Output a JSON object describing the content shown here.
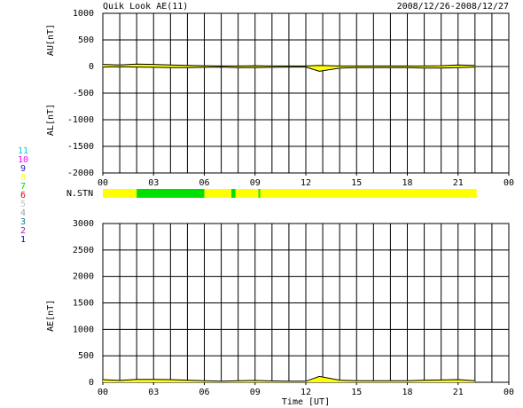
{
  "title": "Quik Look AE(11)",
  "date_range": "2008/12/26-2008/12/27",
  "chart_data": [
    {
      "type": "line",
      "xlim": [
        0,
        24
      ],
      "xgrid_step": 1,
      "xticks": [
        {
          "value": 0,
          "label": "00"
        },
        {
          "value": 3,
          "label": "03"
        },
        {
          "value": 6,
          "label": "06"
        },
        {
          "value": 9,
          "label": "09"
        },
        12,
        15,
        18,
        21,
        {
          "value": 24,
          "label": "00"
        }
      ],
      "ylim": [
        -2000,
        1000
      ],
      "yticks": [
        1000,
        500,
        0,
        -500,
        -1000,
        -1500,
        -2000
      ],
      "grid": true,
      "x": [
        0,
        1,
        2,
        3,
        4,
        5,
        6,
        7,
        8,
        9,
        10,
        11,
        12,
        12.8,
        14,
        15,
        16,
        17,
        18,
        19,
        20,
        21,
        22
      ],
      "series": [
        {
          "name": "AU[nT]",
          "color": "#000000",
          "fill": "#ffff00",
          "values": [
            40,
            30,
            45,
            40,
            30,
            20,
            15,
            10,
            10,
            15,
            10,
            10,
            10,
            20,
            10,
            10,
            10,
            10,
            10,
            10,
            15,
            30,
            20
          ]
        },
        {
          "name": "AL[nT]",
          "color": "#000000",
          "fill": "#ffff00",
          "values": [
            -10,
            -5,
            -10,
            -15,
            -20,
            -20,
            -15,
            -10,
            -20,
            -20,
            -15,
            -10,
            -10,
            -90,
            -30,
            -20,
            -20,
            -20,
            -20,
            -30,
            -30,
            -20,
            -10
          ]
        }
      ]
    },
    {
      "type": "stations",
      "label": "N.STN",
      "levels": [
        {
          "value": 11,
          "color": "#00d0d0"
        },
        {
          "value": 10,
          "color": "#ff00ff"
        },
        {
          "value": 9,
          "color": "#2020c0"
        },
        {
          "value": 8,
          "color": "#ffff00"
        },
        {
          "value": 7,
          "color": "#00e000"
        },
        {
          "value": 6,
          "color": "#e00000"
        },
        {
          "value": 5,
          "color": "#c0c0c0"
        },
        {
          "value": 4,
          "color": "#a0a0a0"
        },
        {
          "value": 3,
          "color": "#008080"
        },
        {
          "value": 2,
          "color": "#a020a0"
        },
        {
          "value": 1,
          "color": "#0000ff"
        }
      ],
      "segments": [
        {
          "start": 0,
          "end": 2,
          "stations": 8
        },
        {
          "start": 2,
          "end": 6,
          "stations": 7
        },
        {
          "start": 6,
          "end": 7.6,
          "stations": 8
        },
        {
          "start": 7.6,
          "end": 7.85,
          "stations": 7
        },
        {
          "start": 7.85,
          "end": 9.2,
          "stations": 8
        },
        {
          "start": 9.2,
          "end": 9.3,
          "stations": 7
        },
        {
          "start": 9.3,
          "end": 22.1,
          "stations": 8
        }
      ]
    },
    {
      "type": "line",
      "xlabel": "Time [UT]",
      "xlim": [
        0,
        24
      ],
      "xgrid_step": 1,
      "xticks": [
        {
          "value": 0,
          "label": "00"
        },
        {
          "value": 3,
          "label": "03"
        },
        {
          "value": 6,
          "label": "06"
        },
        {
          "value": 9,
          "label": "09"
        },
        12,
        15,
        18,
        21,
        {
          "value": 24,
          "label": "00"
        }
      ],
      "ylim": [
        0,
        3000
      ],
      "yticks": [
        3000,
        2500,
        2000,
        1500,
        1000,
        500,
        0
      ],
      "grid": true,
      "x": [
        0,
        1,
        2,
        3,
        4,
        5,
        6,
        7,
        8,
        9,
        10,
        11,
        12,
        12.8,
        14,
        15,
        16,
        17,
        18,
        19,
        20,
        21,
        22
      ],
      "series": [
        {
          "name": "AE[nT]",
          "color": "#000000",
          "fill": "#ffff00",
          "values": [
            50,
            35,
            55,
            55,
            50,
            40,
            30,
            20,
            30,
            35,
            25,
            20,
            20,
            110,
            40,
            30,
            30,
            30,
            30,
            40,
            45,
            50,
            30
          ]
        }
      ]
    }
  ]
}
